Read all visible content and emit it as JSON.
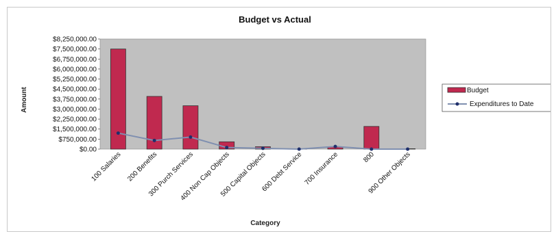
{
  "chart_data": {
    "type": "bar",
    "title": "Budget vs Actual",
    "xlabel": "Category",
    "ylabel": "Amount",
    "categories": [
      "100 Salaries",
      "200 Benefits",
      "300 Purch Services",
      "400 Non Cap Objects",
      "500 Capital Objects",
      "600 Debt Service",
      "700 Insurance",
      "800",
      "900 Other Objects"
    ],
    "ylim": [
      0,
      8250000
    ],
    "yticks": [
      "$8,250,000.00",
      "$7,500,000.00",
      "$6,750,000.00",
      "$6,000,000.00",
      "$5,250,000.00",
      "$4,500,000.00",
      "$3,750,000.00",
      "$3,000,000.00",
      "$2,250,000.00",
      "$1,500,000.00",
      "$750,000.00",
      "$0.00"
    ],
    "ytick_values": [
      8250000,
      7500000,
      6750000,
      6000000,
      5250000,
      4500000,
      3750000,
      3000000,
      2250000,
      1500000,
      750000,
      0
    ],
    "series": [
      {
        "name": "Budget",
        "kind": "bar",
        "color": "#c0294f",
        "values": [
          7500000,
          3950000,
          3250000,
          550000,
          180000,
          20000,
          150000,
          1700000,
          30000
        ]
      },
      {
        "name": "Expenditures to Date",
        "kind": "line",
        "color": "#7f8fb0",
        "marker_color": "#1f2f6b",
        "values": [
          1200000,
          650000,
          900000,
          120000,
          60000,
          0,
          200000,
          0,
          0
        ]
      }
    ],
    "grid": false,
    "legend_position": "right",
    "plot_background": "#c0c0c0"
  }
}
